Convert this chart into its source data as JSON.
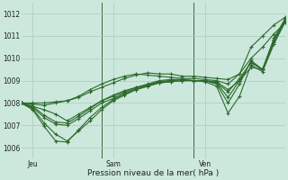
{
  "xlabel": "Pression niveau de la mer( hPa )",
  "bg_color": "#cce8dc",
  "grid_color": "#aacabc",
  "line_color": "#2d6a2d",
  "vline_color": "#3a6a3a",
  "ylim": [
    1005.5,
    1012.5
  ],
  "xlim": [
    0,
    23
  ],
  "xtick_labels": [
    "Jeu",
    "Sam",
    "Ven"
  ],
  "xtick_positions": [
    1,
    8,
    16
  ],
  "ytick_values": [
    1006,
    1007,
    1008,
    1009,
    1010,
    1011,
    1012
  ],
  "vline_positions": [
    7,
    15
  ],
  "series": [
    [
      1008.0,
      1007.95,
      1007.9,
      1008.0,
      1008.1,
      1008.3,
      1008.6,
      1008.85,
      1009.05,
      1009.2,
      1009.3,
      1009.25,
      1009.2,
      1009.15,
      1009.1,
      1009.1,
      1009.05,
      1009.0,
      1008.85,
      1009.3,
      1010.5,
      1011.0,
      1011.5,
      1011.85
    ],
    [
      1008.0,
      1007.85,
      1007.7,
      1007.5,
      1007.2,
      1007.5,
      1007.8,
      1008.1,
      1008.3,
      1008.5,
      1008.7,
      1008.85,
      1009.0,
      1009.05,
      1009.05,
      1009.0,
      1009.0,
      1008.95,
      1008.6,
      1009.0,
      1009.6,
      1009.5,
      1010.8,
      1011.7
    ],
    [
      1008.0,
      1007.8,
      1007.35,
      1007.05,
      1007.0,
      1007.3,
      1007.65,
      1008.0,
      1008.2,
      1008.45,
      1008.65,
      1008.8,
      1008.95,
      1009.0,
      1009.05,
      1009.0,
      1009.0,
      1008.9,
      1008.5,
      1009.1,
      1009.8,
      1009.5,
      1010.9,
      1011.8
    ],
    [
      1008.0,
      1007.75,
      1007.1,
      1006.6,
      1006.3,
      1006.75,
      1007.2,
      1007.7,
      1008.1,
      1008.35,
      1008.6,
      1008.75,
      1008.9,
      1008.95,
      1009.0,
      1009.0,
      1009.0,
      1008.85,
      1008.0,
      1008.85,
      1009.9,
      1009.5,
      1010.7,
      1011.75
    ],
    [
      1008.0,
      1007.7,
      1006.95,
      1006.3,
      1006.25,
      1006.8,
      1007.35,
      1007.8,
      1008.15,
      1008.4,
      1008.6,
      1008.75,
      1008.9,
      1008.95,
      1009.0,
      1009.0,
      1008.95,
      1008.75,
      1007.55,
      1008.3,
      1009.7,
      1009.4,
      1010.65,
      1011.65
    ],
    [
      1008.0,
      1007.85,
      1007.45,
      1007.15,
      1007.1,
      1007.4,
      1007.75,
      1008.1,
      1008.35,
      1008.55,
      1008.7,
      1008.8,
      1008.95,
      1009.0,
      1009.05,
      1009.0,
      1009.0,
      1008.9,
      1008.25,
      1009.0,
      1009.85,
      1009.5,
      1010.85,
      1011.8
    ],
    [
      1008.0,
      1008.0,
      1008.0,
      1008.05,
      1008.1,
      1008.25,
      1008.5,
      1008.7,
      1008.9,
      1009.1,
      1009.25,
      1009.35,
      1009.3,
      1009.3,
      1009.2,
      1009.2,
      1009.15,
      1009.1,
      1009.05,
      1009.3,
      1010.0,
      1010.5,
      1011.1,
      1011.6
    ]
  ],
  "xlabel_fontsize": 6.5,
  "tick_fontsize": 5.5
}
